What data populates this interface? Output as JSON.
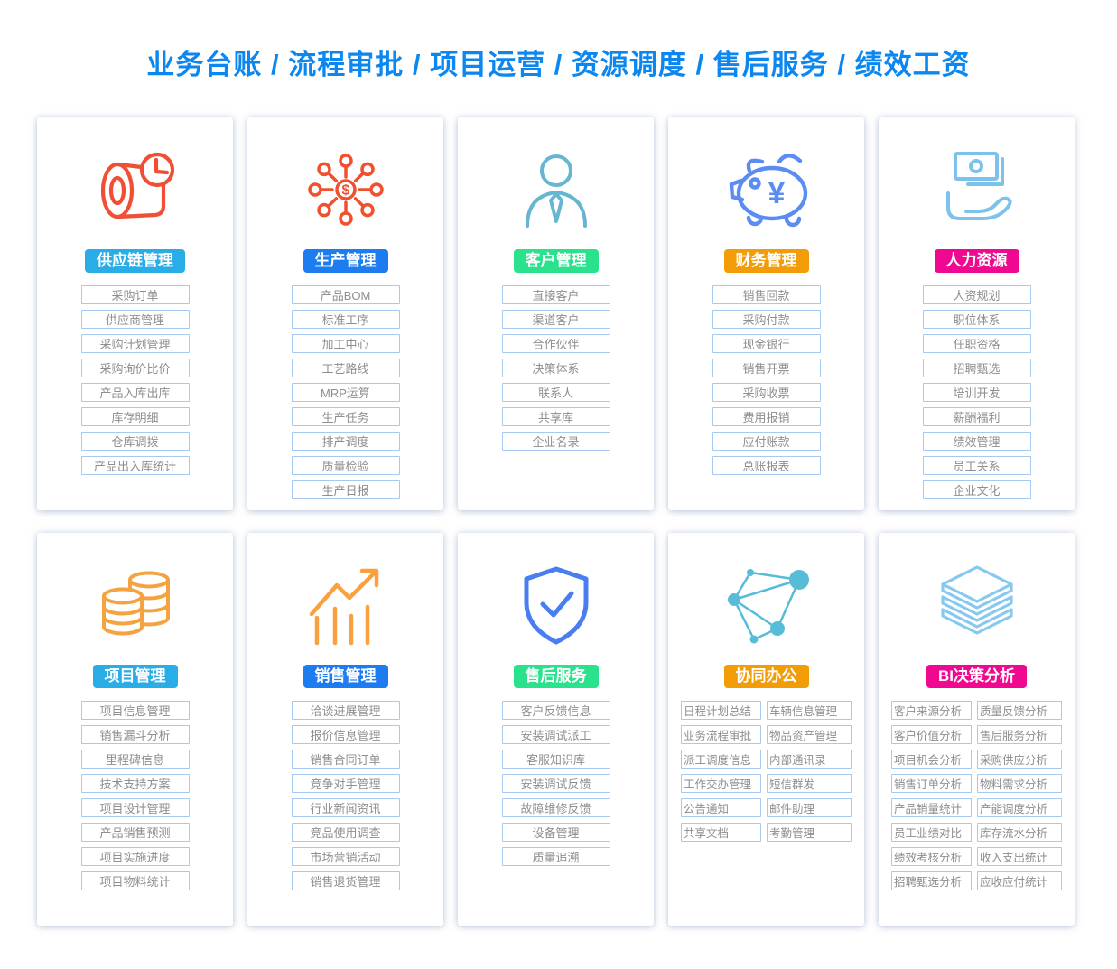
{
  "title": "业务台账 / 流程审批 / 项目运营 / 资源调度 / 售后服务 / 绩效工资",
  "colors": {
    "title_text": "#0d87f0",
    "item_border": "#a5c9f1",
    "item_text": "#8e8e8e",
    "badge_text": "#ffffff"
  },
  "cards": [
    {
      "id": "supply-chain",
      "label": "供应链管理",
      "header_color": "#29ade6",
      "icon": "paper-roll-clock-icon",
      "icon_color": "#f04f35",
      "columns": 1,
      "items": [
        "采购订单",
        "供应商管理",
        "采购计划管理",
        "采购询价比价",
        "产品入库出库",
        "库存明细",
        "仓库调拨",
        "产品出入库统计"
      ]
    },
    {
      "id": "production",
      "label": "生产管理",
      "header_color": "#1d7df0",
      "icon": "network-dollar-icon",
      "icon_color": "#f0502e",
      "columns": 1,
      "items": [
        "产品BOM",
        "标准工序",
        "加工中心",
        "工艺路线",
        "MRP运算",
        "生产任务",
        "排产调度",
        "质量检验",
        "生产日报"
      ]
    },
    {
      "id": "customer",
      "label": "客户管理",
      "header_color": "#2ae28c",
      "icon": "person-tie-icon",
      "icon_color": "#66b6d2",
      "columns": 1,
      "items": [
        "直接客户",
        "渠道客户",
        "合作伙伴",
        "决策体系",
        "联系人",
        "共享库",
        "企业名录"
      ]
    },
    {
      "id": "finance",
      "label": "财务管理",
      "header_color": "#f29c07",
      "icon": "piggy-bank-yen-icon",
      "icon_color": "#5b8cf2",
      "columns": 1,
      "items": [
        "销售回款",
        "采购付款",
        "现金银行",
        "销售开票",
        "采购收票",
        "费用报销",
        "应付账款",
        "总账报表"
      ]
    },
    {
      "id": "hr",
      "label": "人力资源",
      "header_color": "#f00890",
      "icon": "hand-money-icon",
      "icon_color": "#7cc2ea",
      "columns": 1,
      "items": [
        "人资规划",
        "职位体系",
        "任职资格",
        "招聘甄选",
        "培训开发",
        "薪酬福利",
        "绩效管理",
        "员工关系",
        "企业文化"
      ]
    },
    {
      "id": "project",
      "label": "项目管理",
      "header_color": "#29ade6",
      "icon": "coin-stacks-icon",
      "icon_color": "#f5a340",
      "columns": 1,
      "items": [
        "项目信息管理",
        "销售漏斗分析",
        "里程碑信息",
        "技术支持方案",
        "项目设计管理",
        "产品销售预测",
        "项目实施进度",
        "项目物料统计"
      ]
    },
    {
      "id": "sales",
      "label": "销售管理",
      "header_color": "#1d7df0",
      "icon": "growth-chart-icon",
      "icon_color": "#f9a03f",
      "columns": 1,
      "items": [
        "洽谈进展管理",
        "报价信息管理",
        "销售合同订单",
        "竞争对手管理",
        "行业新闻资讯",
        "竞品使用调查",
        "市场营销活动",
        "销售退货管理"
      ]
    },
    {
      "id": "after-sales",
      "label": "售后服务",
      "header_color": "#2ae28c",
      "icon": "shield-check-icon",
      "icon_color": "#4a7df0",
      "columns": 1,
      "items": [
        "客户反馈信息",
        "安装调试派工",
        "客服知识库",
        "安装调试反馈",
        "故障维修反馈",
        "设备管理",
        "质量追溯"
      ]
    },
    {
      "id": "collab-office",
      "label": "协同办公",
      "header_color": "#f29c07",
      "icon": "node-network-icon",
      "icon_color": "#56bcd8",
      "columns": 2,
      "rows": 6,
      "items": [
        "日程计划总结",
        "业务流程审批",
        "派工调度信息",
        "工作交办管理",
        "公告通知",
        "共享文档",
        "车辆信息管理",
        "物品资产管理",
        "内部通讯录",
        "短信群发",
        "邮件助理",
        "考勤管理"
      ]
    },
    {
      "id": "bi-analysis",
      "label": "BI决策分析",
      "header_color": "#f00890",
      "icon": "layers-stack-icon",
      "icon_color": "#87c8ef",
      "columns": 2,
      "rows": 8,
      "items": [
        "客户来源分析",
        "客户价值分析",
        "项目机会分析",
        "销售订单分析",
        "产品销量统计",
        "员工业绩对比",
        "绩效考核分析",
        "招聘甄选分析",
        "质量反馈分析",
        "售后服务分析",
        "采购供应分析",
        "物料需求分析",
        "产能调度分析",
        "库存流水分析",
        "收入支出统计",
        "应收应付统计"
      ]
    }
  ]
}
